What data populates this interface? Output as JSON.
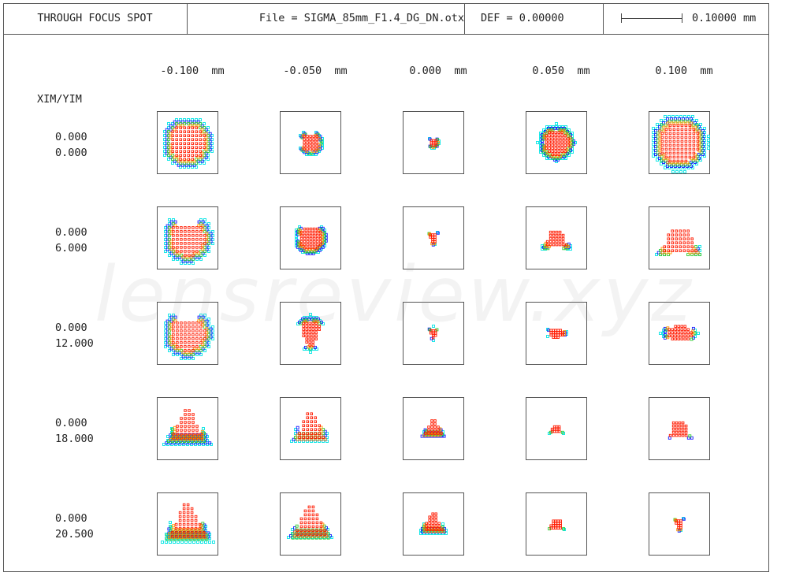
{
  "header": {
    "title": "THROUGH FOCUS SPOT",
    "file": "File = SIGMA_85mm_F1.4_DG_DN.otx",
    "def": "DEF = 0.00000",
    "scale": "0.10000 mm"
  },
  "focus_columns": [
    "-0.100  mm",
    "-0.050  mm",
    "0.000  mm",
    "0.050  mm",
    "0.100  mm"
  ],
  "row_header": "XIM/YIM",
  "field_rows": [
    {
      "xim": "0.000",
      "yim": "0.000"
    },
    {
      "xim": "0.000",
      "yim": "6.000"
    },
    {
      "xim": "0.000",
      "yim": "12.000"
    },
    {
      "xim": "0.000",
      "yim": "18.000"
    },
    {
      "xim": "0.000",
      "yim": "20.500"
    }
  ],
  "watermark": "lensreview.xyz",
  "colors": {
    "wavelength_1": "#ff1a00",
    "wavelength_2": "#ff9900",
    "wavelength_3": "#33cc33",
    "wavelength_4": "#1a1aff",
    "wavelength_5": "#00e5e5",
    "frame": "#555555"
  }
}
